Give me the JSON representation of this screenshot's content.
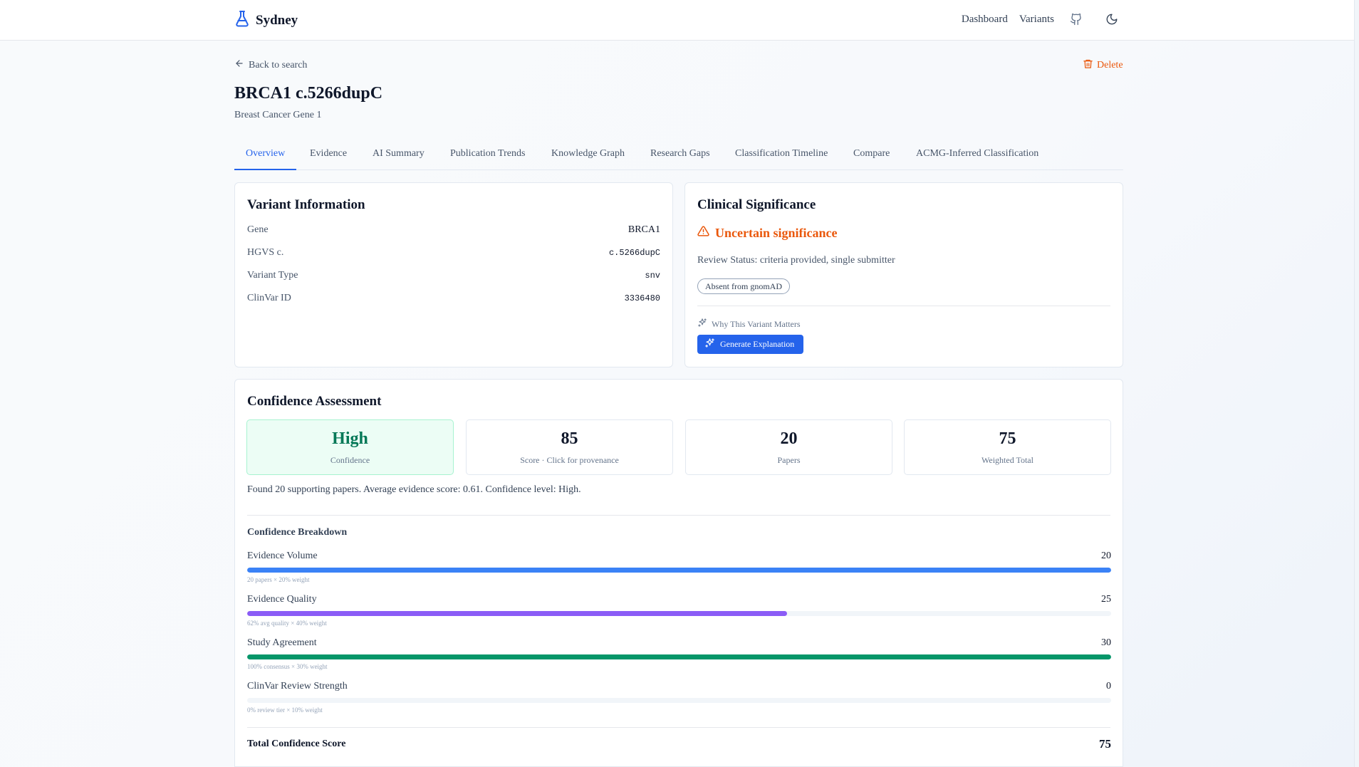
{
  "app": {
    "name": "Sydney",
    "icon": "flask-icon",
    "nav": [
      {
        "label": "Dashboard"
      },
      {
        "label": "Variants"
      }
    ],
    "nav_icons": [
      "github-icon",
      "moon-icon"
    ]
  },
  "page": {
    "back_label": "Back to search",
    "delete_label": "Delete",
    "title": "BRCA1 c.5266dupC",
    "subtitle": "Breast Cancer Gene 1"
  },
  "tabs": [
    {
      "label": "Overview",
      "active": true
    },
    {
      "label": "Evidence",
      "active": false
    },
    {
      "label": "AI Summary",
      "active": false
    },
    {
      "label": "Publication Trends",
      "active": false
    },
    {
      "label": "Knowledge Graph",
      "active": false
    },
    {
      "label": "Research Gaps",
      "active": false
    },
    {
      "label": "Classification Timeline",
      "active": false
    },
    {
      "label": "Compare",
      "active": false
    },
    {
      "label": "ACMG-Inferred Classification",
      "active": false
    }
  ],
  "variant_info": {
    "title": "Variant Information",
    "rows": [
      {
        "label": "Gene",
        "value": "BRCA1"
      },
      {
        "label": "HGVS c.",
        "value": "c.5266dupC"
      },
      {
        "label": "Variant Type",
        "value": "snv"
      },
      {
        "label": "ClinVar ID",
        "value": "3336480"
      }
    ]
  },
  "clinical": {
    "title": "Clinical Significance",
    "significance": "Uncertain significance",
    "significance_icon": "warning-triangle-icon",
    "significance_color": "#ea580c",
    "review_status": "Review Status: criteria provided, single submitter",
    "badge": "Absent from gnomAD",
    "why_label": "Why This Variant Matters",
    "why_icon": "sparkles-icon",
    "button_label": "Generate Explanation"
  },
  "confidence": {
    "title": "Confidence Assessment",
    "metrics": [
      {
        "value": "High",
        "caption": "Confidence"
      },
      {
        "value": "85",
        "caption": "Score · Click for provenance"
      },
      {
        "value": "20",
        "caption": "Papers"
      },
      {
        "value": "75",
        "caption": "Weighted Total"
      }
    ],
    "summary": "Found 20 supporting papers. Average evidence score: 0.61. Confidence level: High.",
    "breakdown_title": "Confidence Breakdown",
    "breakdown": [
      {
        "label": "Evidence Volume",
        "value": "20",
        "fill": 1.0,
        "color": "#3b82f6",
        "note": "20 papers × 20% weight"
      },
      {
        "label": "Evidence Quality",
        "value": "25",
        "fill": 0.625,
        "color": "#8b5cf6",
        "note": "62% avg quality × 40% weight"
      },
      {
        "label": "Study Agreement",
        "value": "30",
        "fill": 1.0,
        "color": "#059669",
        "note": "100% consensus × 30% weight"
      },
      {
        "label": "ClinVar Review Strength",
        "value": "0",
        "fill": 0.0,
        "color": "#3b82f6",
        "note": "0% review tier × 10% weight"
      }
    ],
    "total_label": "Total Confidence Score",
    "total_value": "75"
  }
}
